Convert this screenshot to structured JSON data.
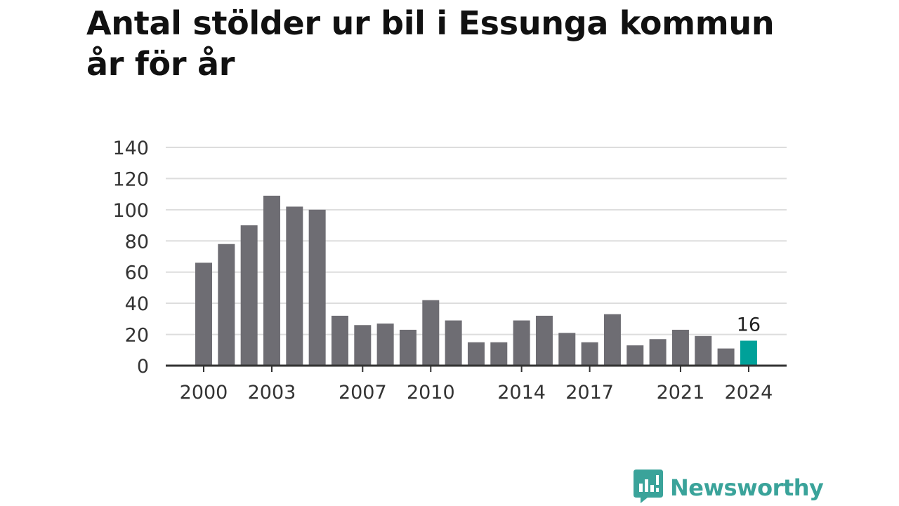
{
  "title": "Antal stölder ur bil i Essunga kommun år för år",
  "brand": {
    "name": "Newsworthy",
    "color": "#3aa39a",
    "icon": "chat-bubble-chart-icon"
  },
  "colors": {
    "bar": "#6e6d73",
    "highlight": "#00a199",
    "grid": "#dddddd",
    "axis": "#333333"
  },
  "chart_data": {
    "type": "bar",
    "title": "Antal stölder ur bil i Essunga kommun år för år",
    "xlabel": "",
    "ylabel": "",
    "categories": [
      2000,
      2001,
      2002,
      2003,
      2004,
      2005,
      2006,
      2007,
      2008,
      2009,
      2010,
      2011,
      2012,
      2013,
      2014,
      2015,
      2016,
      2017,
      2018,
      2019,
      2020,
      2021,
      2022,
      2023,
      2024
    ],
    "values": [
      66,
      78,
      90,
      109,
      102,
      100,
      32,
      26,
      27,
      23,
      42,
      29,
      15,
      15,
      29,
      32,
      21,
      15,
      33,
      13,
      17,
      23,
      19,
      11,
      16
    ],
    "ylim": [
      0,
      140
    ],
    "yticks": [
      0,
      20,
      40,
      60,
      80,
      100,
      120,
      140
    ],
    "xtick_labels": [
      2000,
      2003,
      2007,
      2010,
      2014,
      2017,
      2021,
      2024
    ],
    "highlight": {
      "category": 2024,
      "label": "16"
    },
    "grid": true,
    "legend": "none"
  }
}
